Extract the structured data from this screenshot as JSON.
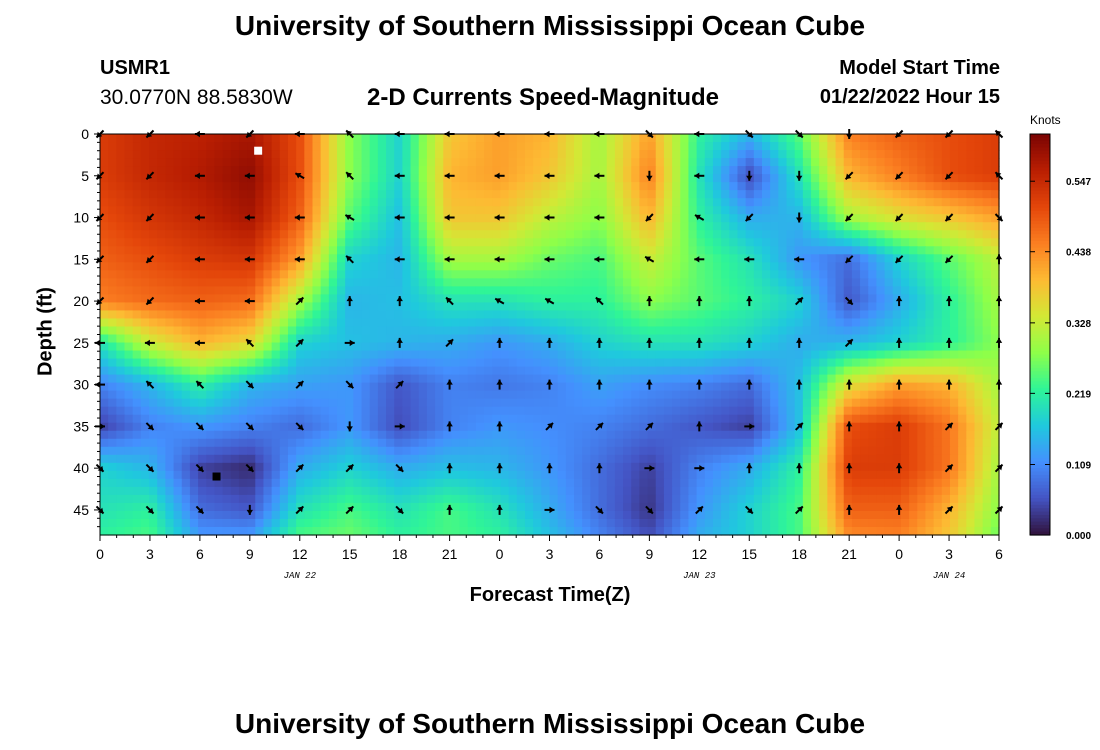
{
  "page": {
    "title_top": "University of Southern Mississippi Ocean Cube",
    "title_bottom": "University of Southern Mississippi Ocean Cube",
    "station": "USMR1",
    "coords": "30.0770N  88.5830W",
    "variable": "2-D Currents Speed-Magnitude",
    "model_start_label": "Model Start Time",
    "model_start_value": "01/22/2022 Hour 15"
  },
  "chart_data": {
    "type": "heatmap",
    "title": "2-D Currents Speed-Magnitude",
    "xlabel": "Forecast Time(Z)",
    "ylabel": "Depth (ft)",
    "x_ticks": [
      "0",
      "3",
      "6",
      "9",
      "12",
      "15",
      "18",
      "21",
      "0",
      "3",
      "6",
      "9",
      "12",
      "15",
      "18",
      "21",
      "0",
      "3",
      "6"
    ],
    "date_labels": [
      {
        "text": "JAN 22",
        "tick_index": 4
      },
      {
        "text": "JAN 23",
        "tick_index": 12
      },
      {
        "text": "JAN 24",
        "tick_index": 17
      }
    ],
    "x_range_hours": [
      0,
      54
    ],
    "y_ticks": [
      0,
      5,
      10,
      15,
      20,
      25,
      30,
      35,
      40,
      45
    ],
    "y_range_ft": [
      0,
      48
    ],
    "colorbar": {
      "unit": "Knots",
      "ticks": [
        "0.547",
        "0.438",
        "0.328",
        "0.219",
        "0.109",
        "0.000"
      ],
      "range": [
        0.0,
        0.62
      ],
      "colors": [
        "#30123b",
        "#4454c4",
        "#4490fe",
        "#1fc9dd",
        "#2ff597",
        "#8eff49",
        "#d3e835",
        "#fdba33",
        "#fb7e21",
        "#e4460a",
        "#b91e02",
        "#7a0403"
      ]
    },
    "speed_field": {
      "hours": [
        0,
        3,
        6,
        9,
        12,
        15,
        18,
        21,
        24,
        27,
        30,
        33,
        36,
        39,
        42,
        45,
        48,
        51,
        54
      ],
      "depths_ft": [
        0,
        5,
        10,
        15,
        20,
        25,
        30,
        35,
        40,
        45,
        48
      ],
      "values": [
        [
          0.52,
          0.55,
          0.56,
          0.58,
          0.5,
          0.28,
          0.18,
          0.38,
          0.42,
          0.4,
          0.3,
          0.42,
          0.22,
          0.15,
          0.25,
          0.45,
          0.48,
          0.5,
          0.52
        ],
        [
          0.52,
          0.55,
          0.57,
          0.6,
          0.5,
          0.28,
          0.18,
          0.4,
          0.42,
          0.38,
          0.3,
          0.45,
          0.2,
          0.05,
          0.2,
          0.4,
          0.45,
          0.5,
          0.52
        ],
        [
          0.5,
          0.53,
          0.55,
          0.58,
          0.48,
          0.25,
          0.16,
          0.38,
          0.38,
          0.32,
          0.28,
          0.4,
          0.22,
          0.14,
          0.15,
          0.3,
          0.35,
          0.38,
          0.42
        ],
        [
          0.48,
          0.5,
          0.52,
          0.53,
          0.42,
          0.18,
          0.15,
          0.3,
          0.3,
          0.26,
          0.24,
          0.33,
          0.25,
          0.2,
          0.12,
          0.08,
          0.18,
          0.25,
          0.32
        ],
        [
          0.45,
          0.47,
          0.48,
          0.47,
          0.3,
          0.15,
          0.16,
          0.2,
          0.2,
          0.22,
          0.22,
          0.28,
          0.25,
          0.22,
          0.18,
          0.06,
          0.14,
          0.22,
          0.3
        ],
        [
          0.2,
          0.33,
          0.4,
          0.36,
          0.18,
          0.16,
          0.15,
          0.14,
          0.12,
          0.14,
          0.18,
          0.2,
          0.2,
          0.18,
          0.14,
          0.15,
          0.18,
          0.22,
          0.28
        ],
        [
          0.1,
          0.15,
          0.22,
          0.15,
          0.13,
          0.12,
          0.06,
          0.1,
          0.09,
          0.1,
          0.13,
          0.11,
          0.1,
          0.08,
          0.16,
          0.35,
          0.42,
          0.4,
          0.3
        ],
        [
          0.04,
          0.1,
          0.12,
          0.1,
          0.08,
          0.12,
          0.05,
          0.1,
          0.12,
          0.11,
          0.1,
          0.08,
          0.06,
          0.04,
          0.16,
          0.5,
          0.52,
          0.46,
          0.32
        ],
        [
          0.18,
          0.15,
          0.04,
          0.02,
          0.14,
          0.18,
          0.14,
          0.16,
          0.15,
          0.12,
          0.08,
          0.04,
          0.1,
          0.14,
          0.22,
          0.52,
          0.52,
          0.46,
          0.3
        ],
        [
          0.2,
          0.22,
          0.08,
          0.06,
          0.2,
          0.24,
          0.2,
          0.24,
          0.2,
          0.14,
          0.08,
          0.03,
          0.12,
          0.18,
          0.24,
          0.48,
          0.48,
          0.4,
          0.28
        ],
        [
          0.22,
          0.24,
          0.12,
          0.12,
          0.24,
          0.26,
          0.22,
          0.24,
          0.22,
          0.16,
          0.1,
          0.05,
          0.14,
          0.18,
          0.24,
          0.44,
          0.45,
          0.38,
          0.26
        ]
      ]
    },
    "arrows": {
      "hours": [
        0,
        3,
        6,
        9,
        12,
        15,
        18,
        21,
        24,
        27,
        30,
        33,
        36,
        39,
        42,
        45,
        48,
        51,
        54
      ],
      "depths_ft": [
        0,
        5,
        10,
        15,
        20,
        25,
        30,
        35,
        40,
        45
      ],
      "direction_deg": [
        [
          225,
          225,
          270,
          225,
          270,
          315,
          270,
          270,
          270,
          270,
          270,
          135,
          270,
          135,
          135,
          180,
          225,
          225,
          315
        ],
        [
          225,
          225,
          270,
          270,
          300,
          315,
          270,
          270,
          270,
          270,
          270,
          180,
          270,
          180,
          180,
          225,
          225,
          225,
          315
        ],
        [
          225,
          225,
          270,
          270,
          270,
          300,
          270,
          270,
          270,
          270,
          270,
          225,
          300,
          225,
          180,
          225,
          225,
          225,
          135
        ],
        [
          225,
          225,
          270,
          270,
          270,
          315,
          270,
          270,
          270,
          270,
          270,
          300,
          270,
          270,
          270,
          225,
          225,
          225,
          0
        ],
        [
          225,
          225,
          270,
          270,
          45,
          0,
          0,
          315,
          300,
          300,
          315,
          0,
          0,
          0,
          45,
          135,
          0,
          0,
          0
        ],
        [
          270,
          270,
          270,
          315,
          45,
          90,
          0,
          45,
          0,
          0,
          0,
          0,
          0,
          0,
          0,
          45,
          0,
          0,
          0
        ],
        [
          270,
          315,
          315,
          135,
          45,
          135,
          45,
          0,
          0,
          0,
          0,
          0,
          0,
          0,
          0,
          0,
          0,
          0,
          0
        ],
        [
          90,
          135,
          135,
          135,
          135,
          180,
          90,
          0,
          0,
          45,
          45,
          45,
          0,
          90,
          45,
          0,
          0,
          45,
          45
        ],
        [
          135,
          135,
          135,
          135,
          45,
          45,
          135,
          0,
          0,
          0,
          0,
          90,
          90,
          0,
          0,
          0,
          0,
          45,
          45
        ],
        [
          135,
          135,
          135,
          180,
          45,
          45,
          135,
          0,
          0,
          90,
          135,
          135,
          45,
          135,
          45,
          0,
          0,
          45,
          45
        ]
      ]
    },
    "markers": [
      {
        "type": "white-square",
        "hour": 9.5,
        "depth_ft": 2
      },
      {
        "type": "black-square",
        "hour": 7,
        "depth_ft": 41
      }
    ]
  }
}
